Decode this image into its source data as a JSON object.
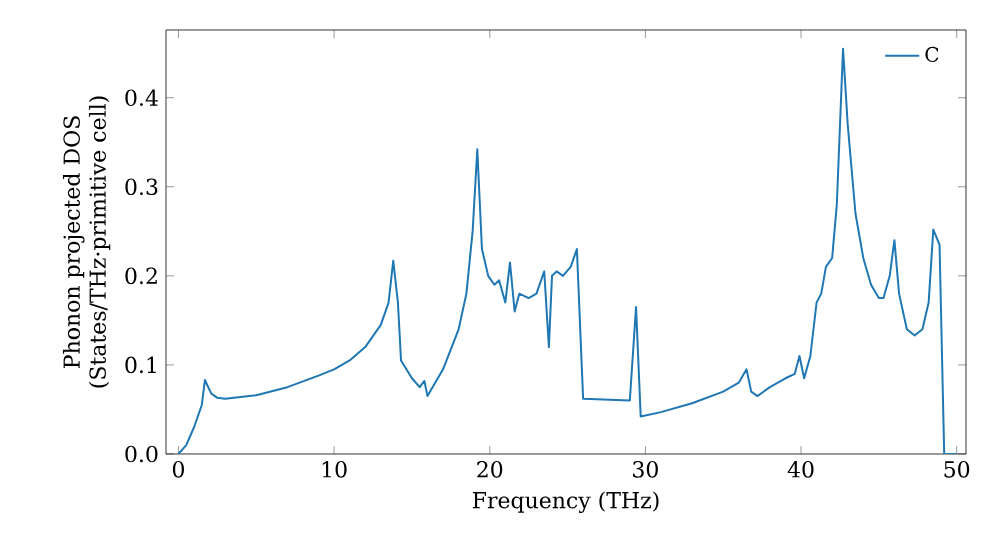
{
  "chart_data": {
    "type": "line",
    "xlabel": "Frequency (THz)",
    "ylabel": "Phonon projected DOS\n(States/THz·primitive cell)",
    "xlim": [
      -0.8,
      50.6
    ],
    "ylim": [
      0,
      0.476
    ],
    "xticks": [
      0,
      10,
      20,
      30,
      40,
      50
    ],
    "yticks": [
      {
        "value": 0,
        "label": "0.0"
      },
      {
        "value": 0.1,
        "label": "0.1"
      },
      {
        "value": 0.2,
        "label": "0.2"
      },
      {
        "value": 0.3,
        "label": "0.3"
      },
      {
        "value": 0.4,
        "label": "0.4"
      }
    ],
    "legend": "top right",
    "grid": false,
    "series": [
      {
        "name": "C",
        "color": "#1f77b4",
        "x": [
          0,
          0.5,
          1,
          1.5,
          1.7,
          2.1,
          2.5,
          3,
          5,
          7,
          9,
          10,
          11,
          12,
          13,
          13.5,
          13.8,
          14.1,
          14.3,
          15,
          15.5,
          15.8,
          16,
          17,
          18,
          18.5,
          18.9,
          19.2,
          19.5,
          19.9,
          20.3,
          20.6,
          21,
          21.3,
          21.6,
          21.9,
          22.5,
          23,
          23.5,
          23.8,
          24,
          24.3,
          24.7,
          25.2,
          25.6,
          26,
          29,
          29.4,
          29.7,
          31,
          33,
          35,
          36,
          36.5,
          36.8,
          37.2,
          38,
          39,
          39.6,
          39.9,
          40.2,
          40.6,
          41,
          41.3,
          41.6,
          42,
          42.3,
          42.7,
          43,
          43.5,
          44,
          44.5,
          45,
          45.3,
          45.7,
          46,
          46.3,
          46.8,
          47.3,
          47.8,
          48.2,
          48.5,
          48.9,
          49.2,
          50
        ],
        "values": [
          0,
          0.01,
          0.03,
          0.055,
          0.083,
          0.068,
          0.063,
          0.062,
          0.066,
          0.075,
          0.088,
          0.095,
          0.105,
          0.12,
          0.145,
          0.17,
          0.217,
          0.17,
          0.105,
          0.085,
          0.075,
          0.082,
          0.065,
          0.095,
          0.14,
          0.18,
          0.25,
          0.342,
          0.23,
          0.2,
          0.19,
          0.195,
          0.17,
          0.215,
          0.16,
          0.18,
          0.175,
          0.18,
          0.205,
          0.12,
          0.2,
          0.205,
          0.2,
          0.21,
          0.23,
          0.062,
          0.06,
          0.165,
          0.042,
          0.047,
          0.057,
          0.07,
          0.08,
          0.095,
          0.07,
          0.065,
          0.075,
          0.085,
          0.09,
          0.11,
          0.085,
          0.11,
          0.17,
          0.18,
          0.21,
          0.22,
          0.28,
          0.455,
          0.37,
          0.27,
          0.22,
          0.19,
          0.175,
          0.175,
          0.2,
          0.24,
          0.18,
          0.14,
          0.133,
          0.14,
          0.17,
          0.252,
          0.235,
          0,
          0
        ]
      }
    ]
  }
}
